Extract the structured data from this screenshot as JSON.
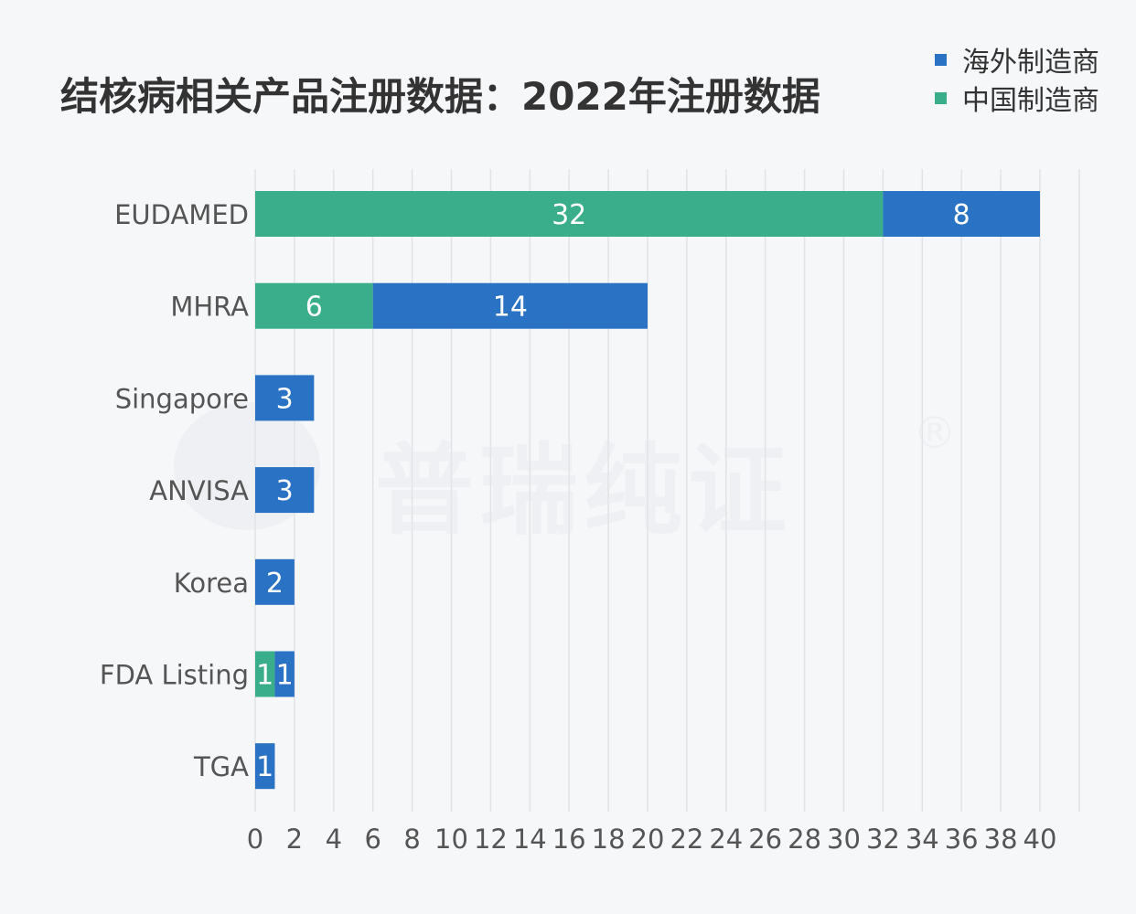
{
  "colors": {
    "overseas": "#2a72c3",
    "china": "#3aae8a",
    "grid": "#e2e3e6",
    "tick_text": "#555555",
    "title_text": "#333333"
  },
  "watermark": {
    "text": "普瑞纯证",
    "mark": "®"
  },
  "chart_data": {
    "type": "bar",
    "orientation": "horizontal",
    "stacked": true,
    "title": "结核病相关产品注册数据：2022年注册数据",
    "xlabel": "",
    "ylabel": "",
    "categories": [
      "EUDAMED",
      "MHRA",
      "Singapore",
      "ANVISA",
      "Korea",
      "FDA Listing",
      "TGA"
    ],
    "series": [
      {
        "name": "中国制造商",
        "color": "#3aae8a",
        "values": [
          32,
          6,
          0,
          0,
          0,
          1,
          0
        ]
      },
      {
        "name": "海外制造商",
        "color": "#2a72c3",
        "values": [
          8,
          14,
          3,
          3,
          2,
          1,
          1
        ]
      }
    ],
    "legend_order": [
      "海外制造商",
      "中国制造商"
    ],
    "legend_position": "top-right",
    "xlim": [
      0,
      42
    ],
    "xticks": [
      0,
      2,
      4,
      6,
      8,
      10,
      12,
      14,
      16,
      18,
      20,
      22,
      24,
      26,
      28,
      30,
      32,
      34,
      36,
      38,
      40
    ],
    "grid": "vertical",
    "data_labels": true
  }
}
